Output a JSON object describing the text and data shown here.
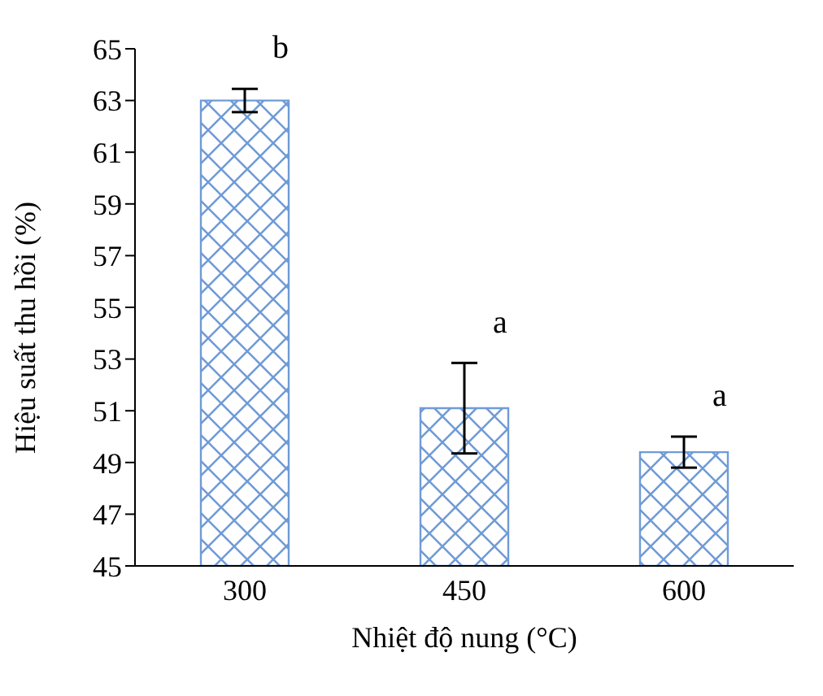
{
  "chart_data": {
    "type": "bar",
    "categories": [
      "300",
      "450",
      "600"
    ],
    "values": [
      63.0,
      51.1,
      49.4
    ],
    "errors": [
      0.45,
      1.75,
      0.6
    ],
    "color": "#6f9bd8",
    "xlabel": "Nhiệt độ nung (°C)",
    "ylabel": "Hiệu suất thu hồi (%)",
    "ylim": [
      45,
      65
    ],
    "yticks": [
      45,
      47,
      49,
      51,
      53,
      55,
      57,
      59,
      61,
      63,
      65
    ],
    "grid": false,
    "annotations": [
      "b",
      "a",
      "a"
    ]
  }
}
